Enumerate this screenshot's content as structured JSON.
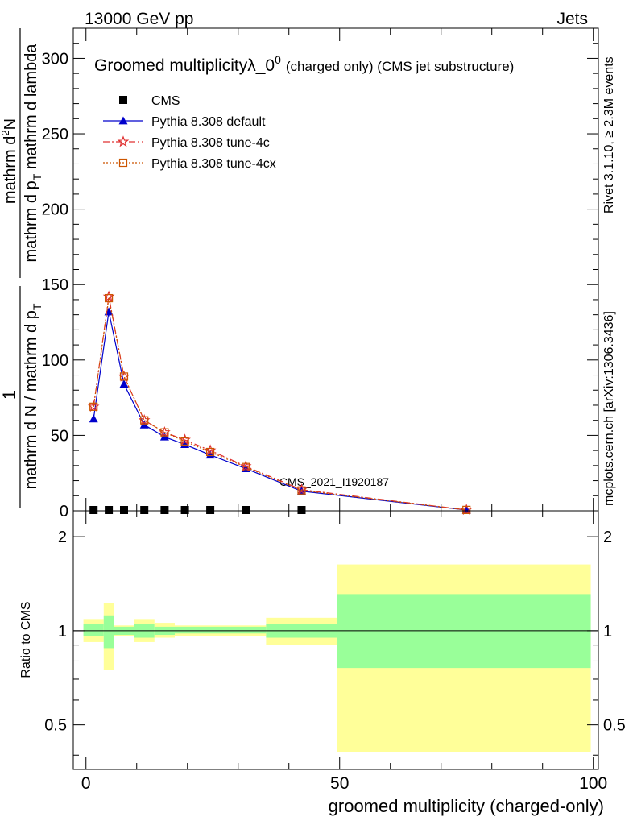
{
  "header": {
    "left": "13000 GeV pp",
    "right": "Jets"
  },
  "side_labels": {
    "rivet": "Rivet 3.1.10, ≥ 2.3M events",
    "mcplots": "mcplots.cern.ch [arXiv:1306.3436]"
  },
  "watermark": "CMS_2021_I1920187",
  "chart_data": {
    "type": "line",
    "title": "Groomed multiplicityλ_0",
    "title_sup": "0",
    "title_suffix": "(charged only) (CMS jet substructure)",
    "ylabel": {
      "frac_num": "1",
      "frac_den": "mathrm d N / mathrm d p",
      "frac_den_sub": "T",
      "lambda_num": "mathrm d",
      "lambda_num_sup": "2",
      "lambda_num_tail": "N",
      "lambda_den": "mathrm d p",
      "lambda_den_sub": "T",
      "lambda_den_tail": " mathrm d lambda"
    },
    "xlabel": "groomed multiplicity (charged-only)",
    "ratio_ylabel": "Ratio to CMS",
    "xlim": [
      -2.5,
      101
    ],
    "ylim": [
      0,
      320
    ],
    "ratio_ylim": [
      0.36,
      2.42
    ],
    "xticks": [
      0,
      50,
      100
    ],
    "xtick_labels": [
      "0",
      "50",
      "100"
    ],
    "yticks": [
      0,
      50,
      100,
      150,
      200,
      250,
      300
    ],
    "ytick_labels": [
      "0",
      "50",
      "100",
      "150",
      "200",
      "250",
      "300"
    ],
    "ratio_yticks": [
      0.5,
      1,
      2
    ],
    "ratio_ytick_labels": [
      "0.5",
      "1",
      "2"
    ],
    "legend_position": "top-left",
    "x": [
      1.5,
      4.5,
      7.5,
      11.5,
      15.5,
      19.5,
      24.5,
      31.5,
      42.5,
      75
    ],
    "series": [
      {
        "name": "CMS",
        "color": "#000000",
        "values": [
          0.4,
          0.4,
          0.4,
          0.4,
          0.4,
          0.4,
          0.4,
          0.4,
          0.4,
          null
        ]
      },
      {
        "name": "Pythia 8.308 default",
        "color": "#0000cc",
        "values": [
          61,
          132,
          84,
          57,
          49,
          44,
          37,
          28,
          13,
          0.5
        ]
      },
      {
        "name": "Pythia 8.308 tune-4c",
        "color": "#e03030",
        "values": [
          69,
          142,
          89,
          60,
          52,
          47,
          40,
          29.5,
          14,
          0.6
        ]
      },
      {
        "name": "Pythia 8.308 tune-4cx",
        "color": "#cc5500",
        "values": [
          69,
          141,
          89,
          60,
          52,
          46,
          39,
          29,
          13.5,
          0.6
        ]
      }
    ],
    "ratio_bands": [
      {
        "x": [
          -0.5,
          3.5
        ],
        "y_inner": [
          0.96,
          1.05
        ],
        "y_outer": [
          0.92,
          1.09
        ]
      },
      {
        "x": [
          3.5,
          5.5
        ],
        "y_inner": [
          0.88,
          1.12
        ],
        "y_outer": [
          0.75,
          1.23
        ]
      },
      {
        "x": [
          5.5,
          9.5
        ],
        "y_inner": [
          0.97,
          1.03
        ],
        "y_outer": [
          0.96,
          1.04
        ]
      },
      {
        "x": [
          9.5,
          13.5
        ],
        "y_inner": [
          0.95,
          1.05
        ],
        "y_outer": [
          0.92,
          1.09
        ]
      },
      {
        "x": [
          13.5,
          17.5
        ],
        "y_inner": [
          0.97,
          1.03
        ],
        "y_outer": [
          0.95,
          1.06
        ]
      },
      {
        "x": [
          17.5,
          35.5
        ],
        "y_inner": [
          0.98,
          1.03
        ],
        "y_outer": [
          0.96,
          1.04
        ]
      },
      {
        "x": [
          35.5,
          49.5
        ],
        "y_inner": [
          0.95,
          1.05
        ],
        "y_outer": [
          0.9,
          1.1
        ]
      },
      {
        "x": [
          49.5,
          99.5
        ],
        "y_inner": [
          0.76,
          1.31
        ],
        "y_outer": [
          0.41,
          1.63
        ]
      }
    ],
    "colors": {
      "band_inner": "#99ff99",
      "band_outer": "#ffff99",
      "watermark": "#999999"
    }
  }
}
